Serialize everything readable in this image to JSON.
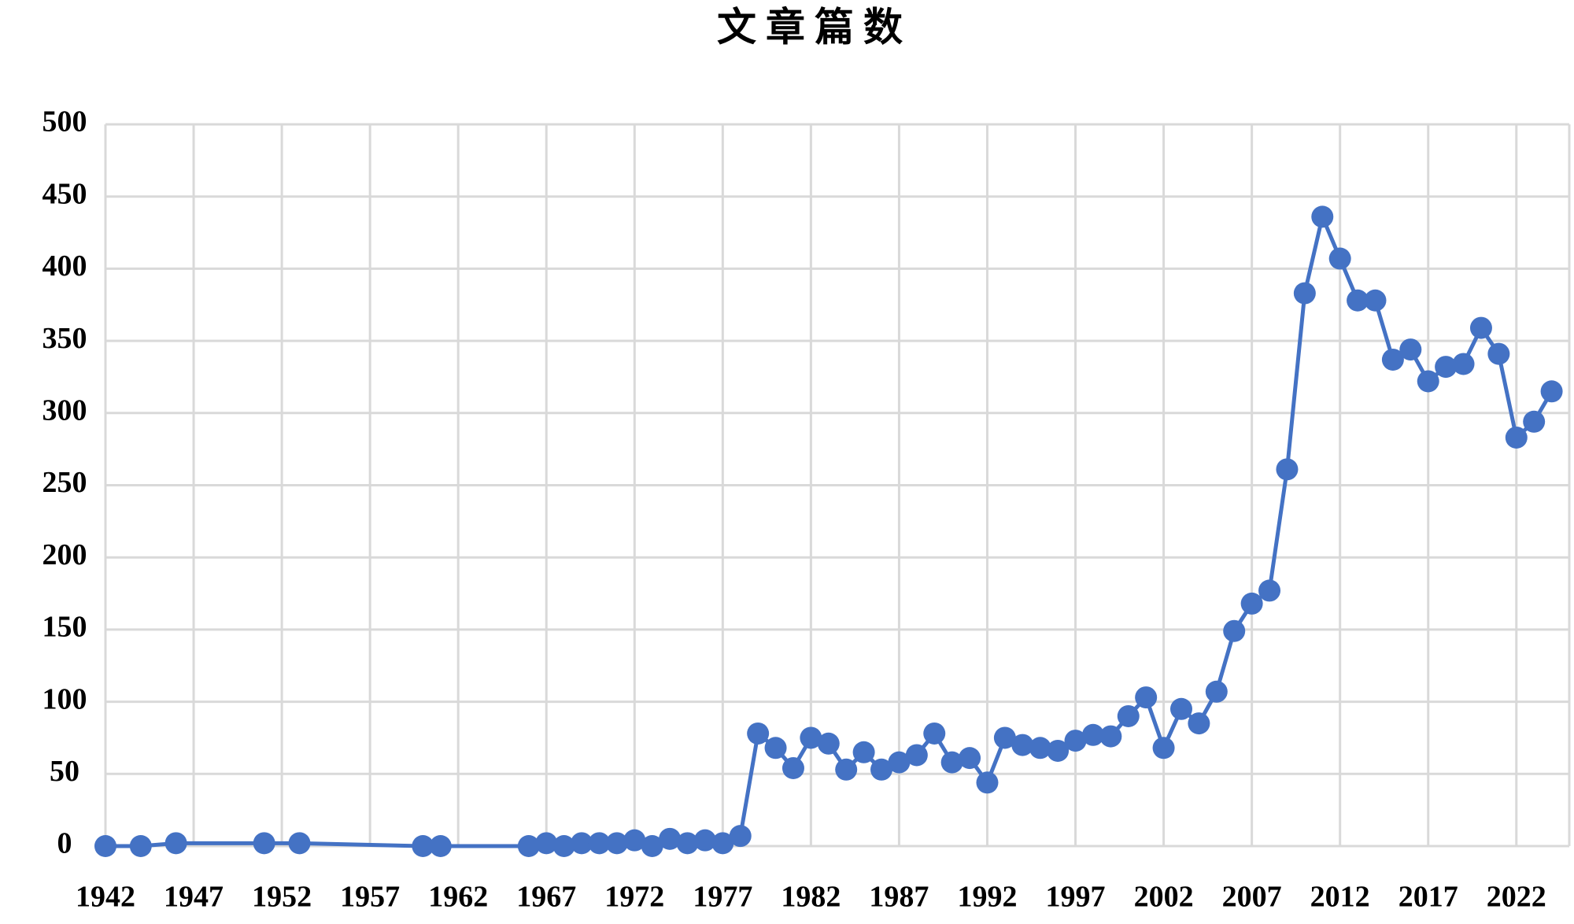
{
  "chart_data": {
    "type": "line",
    "title": "文章篇数",
    "x": [
      1942,
      1944,
      1946,
      1951,
      1953,
      1960,
      1961,
      1966,
      1967,
      1968,
      1969,
      1970,
      1971,
      1972,
      1973,
      1974,
      1975,
      1976,
      1977,
      1978,
      1979,
      1980,
      1981,
      1982,
      1983,
      1984,
      1985,
      1986,
      1987,
      1988,
      1989,
      1990,
      1991,
      1992,
      1993,
      1994,
      1995,
      1996,
      1997,
      1998,
      1999,
      2000,
      2001,
      2002,
      2003,
      2004,
      2005,
      2006,
      2007,
      2008,
      2009,
      2010,
      2011,
      2012,
      2013,
      2014,
      2015,
      2016,
      2017,
      2018,
      2019,
      2020,
      2021,
      2022,
      2023,
      2024
    ],
    "series": [
      {
        "color": "#4472c4",
        "values": [
          0,
          0,
          2,
          2,
          2,
          0,
          0,
          0,
          2,
          0,
          2,
          2,
          2,
          4,
          0,
          5,
          2,
          4,
          2,
          7,
          78,
          68,
          54,
          75,
          71,
          53,
          65,
          53,
          58,
          63,
          78,
          58,
          61,
          44,
          75,
          70,
          68,
          66,
          73,
          77,
          76,
          90,
          103,
          68,
          95,
          85,
          107,
          149,
          168,
          177,
          261,
          383,
          436,
          407,
          378,
          378,
          337,
          344,
          322,
          332,
          334,
          359,
          341,
          283,
          294,
          315
        ]
      }
    ],
    "xlim": [
      1942,
      2025
    ],
    "xticks": [
      1942,
      1947,
      1952,
      1957,
      1962,
      1967,
      1972,
      1977,
      1982,
      1987,
      1992,
      1997,
      2002,
      2007,
      2012,
      2017,
      2022
    ],
    "ylim": [
      0,
      500
    ],
    "yticks": [
      0,
      50,
      100,
      150,
      200,
      250,
      300,
      350,
      400,
      450,
      500
    ],
    "grid": true
  }
}
